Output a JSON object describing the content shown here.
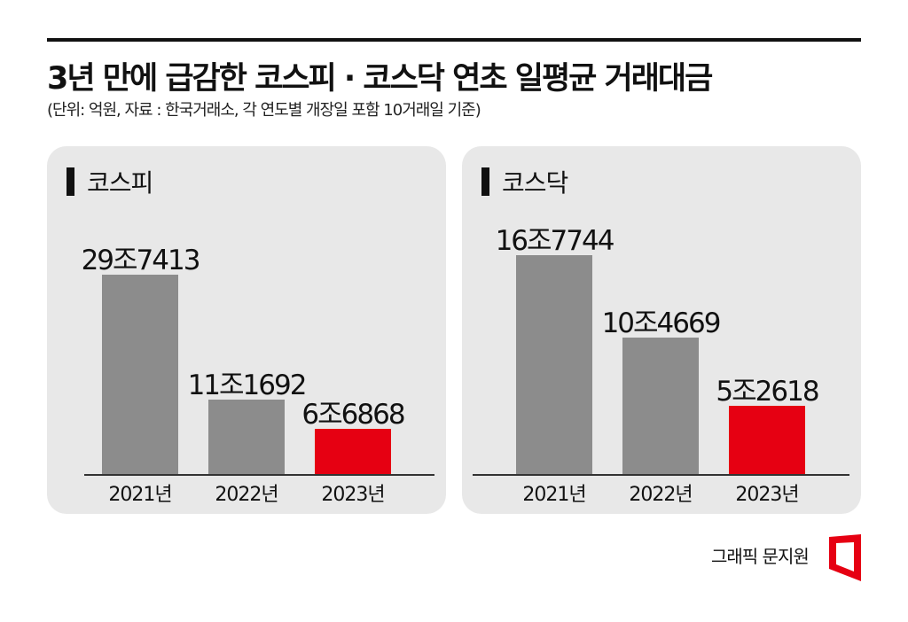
{
  "title": "3년 만에 급감한 코스피 · 코스닥 연초 일평균 거래대금",
  "subtitle": "(단위: 억원, 자료 : 한국거래소, 각 연도별 개장일 포함 10거래일 기준)",
  "credit": "그래픽 문지원",
  "colors": {
    "normal": "#8c8c8c",
    "highlight": "#e60012",
    "panel": "#e8e8e8"
  },
  "chart_data": [
    {
      "type": "bar",
      "title": "코스피",
      "categories": [
        "2021년",
        "2022년",
        "2023년"
      ],
      "values": [
        297413,
        111692,
        66868
      ],
      "labels": [
        "29조7413",
        "11조1692",
        "6조6868"
      ],
      "highlight": [
        false,
        false,
        true
      ],
      "ylabel": "억원"
    },
    {
      "type": "bar",
      "title": "코스닥",
      "categories": [
        "2021년",
        "2022년",
        "2023년"
      ],
      "values": [
        167744,
        104669,
        52618
      ],
      "labels": [
        "16조7744",
        "10조4669",
        "5조2618"
      ],
      "highlight": [
        false,
        false,
        true
      ],
      "ylabel": "억원"
    }
  ]
}
